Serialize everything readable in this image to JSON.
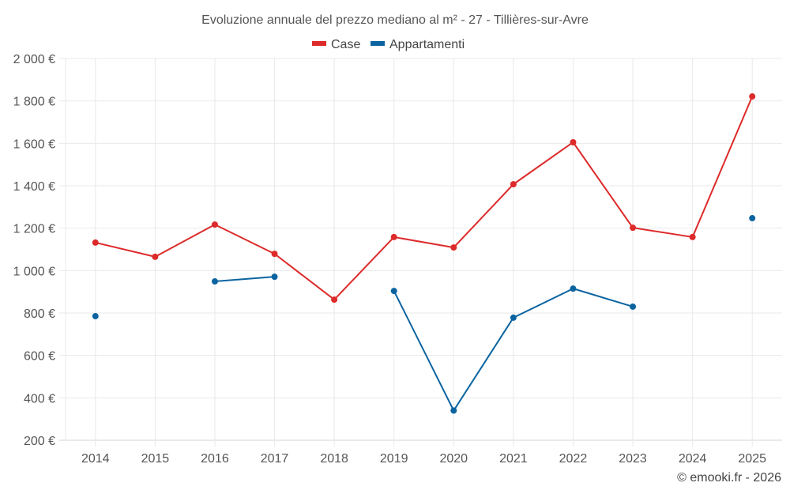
{
  "chart_data": {
    "type": "line",
    "title": "Evoluzione annuale del prezzo mediano al m² - 27 - Tillières-sur-Avre",
    "xlabel": "",
    "ylabel": "",
    "categories": [
      "2014",
      "2015",
      "2016",
      "2017",
      "2018",
      "2019",
      "2020",
      "2021",
      "2022",
      "2023",
      "2024",
      "2025"
    ],
    "ylim": [
      200,
      2000
    ],
    "yticks": [
      200,
      400,
      600,
      800,
      1000,
      1200,
      1400,
      1600,
      1800,
      2000
    ],
    "ytick_labels": [
      "200 €",
      "400 €",
      "600 €",
      "800 €",
      "1 000 €",
      "1 200 €",
      "1 400 €",
      "1 600 €",
      "1 800 €",
      "2 000 €"
    ],
    "grid": true,
    "legend_position": "top-center",
    "series": [
      {
        "name": "Case",
        "color": "#dd2a2a",
        "values": [
          1132,
          1065,
          1217,
          1079,
          863,
          1158,
          1109,
          1407,
          1605,
          1202,
          1158,
          1821
        ]
      },
      {
        "name": "Appartamenti",
        "color": "#0b64a0",
        "values": [
          785,
          null,
          949,
          971,
          null,
          904,
          340,
          778,
          915,
          830,
          null,
          1247
        ]
      }
    ],
    "credit": "© emooki.fr - 2026"
  }
}
